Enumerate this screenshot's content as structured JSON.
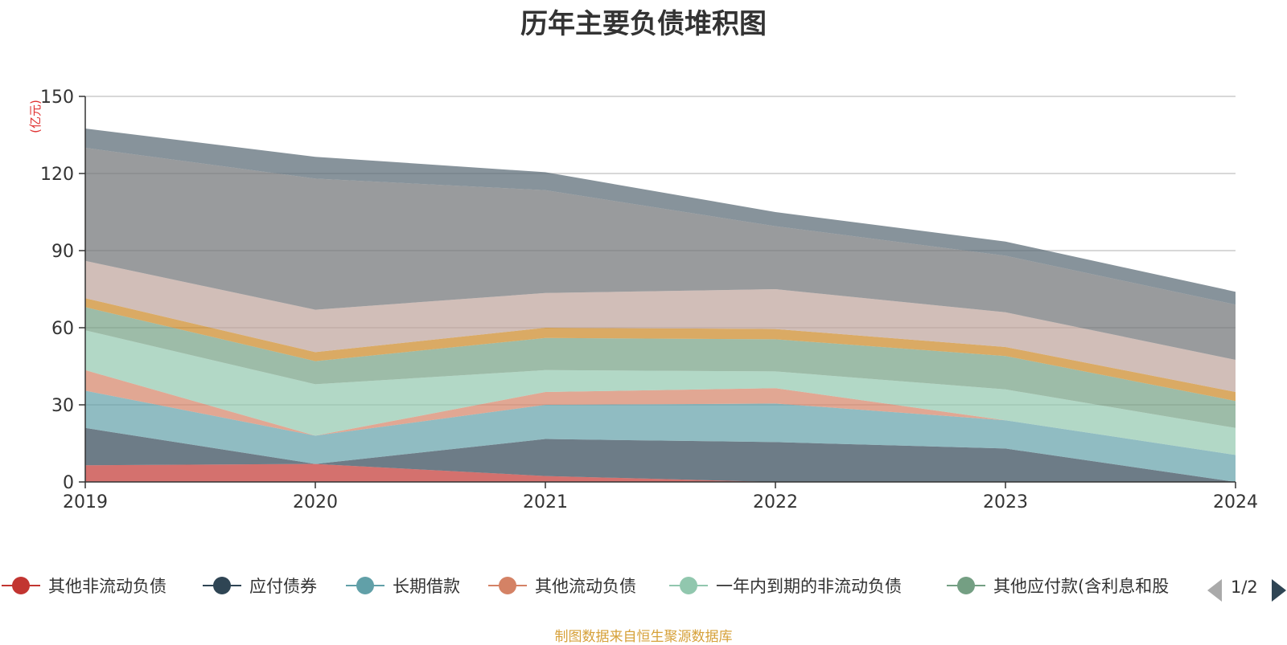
{
  "chart_data": {
    "type": "area",
    "stacked": true,
    "title": "历年主要负债堆积图",
    "unit_label": "(亿元)",
    "x": [
      "2019",
      "2020",
      "2021",
      "2022",
      "2023",
      "2024"
    ],
    "ylim": [
      0,
      150
    ],
    "yticks": [
      "0",
      "30",
      "60",
      "90",
      "120",
      "150"
    ],
    "grid": true,
    "legend_position": "bottom",
    "series": [
      {
        "name": "其他非流动负债",
        "color": "#c23531",
        "values": [
          6.5,
          7.0,
          2.3,
          0.0,
          0.0,
          0.0
        ]
      },
      {
        "name": "应付债券",
        "color": "#2f4554",
        "values": [
          14.5,
          0.0,
          14.4,
          15.5,
          13.0,
          0.0
        ]
      },
      {
        "name": "长期借款",
        "color": "#61a0a8",
        "values": [
          14.5,
          11.0,
          13.3,
          15.0,
          11.0,
          10.5
        ]
      },
      {
        "name": "其他流动负债",
        "color": "#d48265",
        "values": [
          8.0,
          0.0,
          5.0,
          6.0,
          0.0,
          0.0
        ]
      },
      {
        "name": "一年内到期的非流动负债",
        "color": "#91c7ae",
        "values": [
          15.5,
          20.0,
          8.5,
          6.5,
          12.0,
          10.5
        ]
      },
      {
        "name": "其他应付款(含利息和股",
        "color": "#749f83",
        "values": [
          9.0,
          9.0,
          12.5,
          12.5,
          13.0,
          10.5
        ]
      },
      {
        "name": "",
        "color": "#ca8622",
        "values": [
          3.5,
          3.5,
          4.0,
          4.0,
          3.5,
          3.5
        ]
      },
      {
        "name": "",
        "color": "#bda29a",
        "values": [
          14.5,
          16.5,
          13.5,
          15.5,
          13.5,
          12.5
        ]
      },
      {
        "name": "",
        "color": "#6e7074",
        "values": [
          44.0,
          51.0,
          40.0,
          24.5,
          22.0,
          21.5
        ]
      },
      {
        "name": "",
        "color": "#546570",
        "values": [
          7.5,
          8.5,
          7.0,
          5.5,
          5.5,
          5.0
        ]
      }
    ]
  },
  "legend": {
    "visible_count": 6,
    "page_text": "1/2"
  },
  "source_note": "制图数据来自恒生聚源数据库"
}
